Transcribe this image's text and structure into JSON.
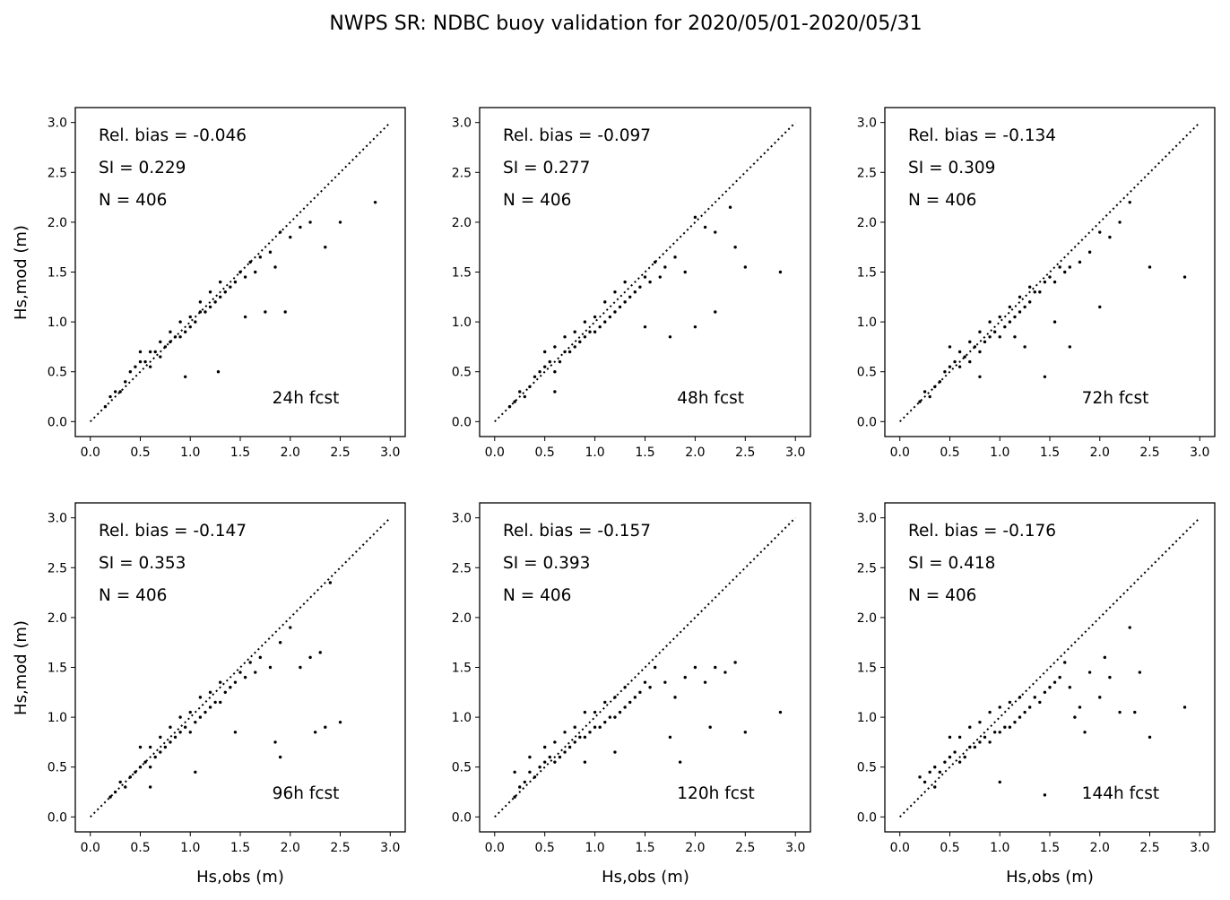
{
  "title": "NWPS SR: NDBC buoy validation for 2020/05/01-2020/05/31",
  "xlabel": "Hs,obs (m)",
  "ylabel": "Hs,mod (m)",
  "chart_data": [
    {
      "type": "scatter",
      "panel_label": "24h fcst",
      "rel_bias_text": "Rel. bias = -0.046",
      "si_text": "SI =  0.229",
      "n_text": "N = 406",
      "rel_bias": -0.046,
      "si": 0.229,
      "n": 406,
      "xlim": [
        -0.15,
        3.15
      ],
      "ylim": [
        -0.15,
        3.15
      ],
      "xticks": [
        "0.0",
        "0.5",
        "1.0",
        "1.5",
        "2.0",
        "2.5",
        "3.0"
      ],
      "yticks": [
        "0.0",
        "0.5",
        "1.0",
        "1.5",
        "2.0",
        "2.5",
        "3.0"
      ],
      "reference_line": "1:1 dotted",
      "points_x": [
        0.15,
        0.2,
        0.25,
        0.3,
        0.35,
        0.4,
        0.45,
        0.5,
        0.5,
        0.55,
        0.6,
        0.6,
        0.65,
        0.7,
        0.7,
        0.75,
        0.8,
        0.8,
        0.85,
        0.9,
        0.9,
        0.95,
        1.0,
        1.0,
        1.05,
        1.1,
        1.1,
        1.15,
        1.2,
        1.2,
        1.25,
        1.3,
        1.3,
        1.35,
        1.4,
        1.45,
        1.5,
        1.55,
        1.6,
        1.65,
        1.7,
        1.8,
        1.85,
        1.9,
        2.0,
        2.1,
        2.2,
        2.35,
        2.5,
        2.85,
        1.28,
        0.95,
        1.95,
        1.75,
        1.55
      ],
      "points_y": [
        0.15,
        0.25,
        0.3,
        0.3,
        0.4,
        0.5,
        0.55,
        0.6,
        0.7,
        0.6,
        0.55,
        0.7,
        0.7,
        0.65,
        0.8,
        0.75,
        0.8,
        0.9,
        0.85,
        0.85,
        1.0,
        0.9,
        0.95,
        1.05,
        1.0,
        1.1,
        1.2,
        1.1,
        1.15,
        1.3,
        1.2,
        1.25,
        1.4,
        1.3,
        1.35,
        1.4,
        1.5,
        1.45,
        1.6,
        1.5,
        1.65,
        1.7,
        1.55,
        1.9,
        1.85,
        1.95,
        2.0,
        1.75,
        2.0,
        2.2,
        0.5,
        0.45,
        1.1,
        1.1,
        1.05
      ]
    },
    {
      "type": "scatter",
      "panel_label": "48h fcst",
      "rel_bias_text": "Rel. bias = -0.097",
      "si_text": "SI =  0.277",
      "n_text": "N = 406",
      "rel_bias": -0.097,
      "si": 0.277,
      "n": 406,
      "xlim": [
        -0.15,
        3.15
      ],
      "ylim": [
        -0.15,
        3.15
      ],
      "xticks": [
        "0.0",
        "0.5",
        "1.0",
        "1.5",
        "2.0",
        "2.5",
        "3.0"
      ],
      "yticks": [
        "0.0",
        "0.5",
        "1.0",
        "1.5",
        "2.0",
        "2.5",
        "3.0"
      ],
      "reference_line": "1:1 dotted",
      "points_x": [
        0.15,
        0.2,
        0.25,
        0.3,
        0.35,
        0.4,
        0.45,
        0.5,
        0.5,
        0.55,
        0.6,
        0.6,
        0.65,
        0.7,
        0.7,
        0.75,
        0.8,
        0.8,
        0.85,
        0.9,
        0.9,
        0.95,
        1.0,
        1.0,
        1.05,
        1.1,
        1.1,
        1.15,
        1.2,
        1.2,
        1.25,
        1.3,
        1.3,
        1.35,
        1.4,
        1.45,
        1.5,
        1.55,
        1.6,
        1.65,
        1.7,
        1.8,
        1.9,
        2.0,
        2.1,
        2.2,
        2.35,
        2.4,
        2.5,
        2.85,
        1.5,
        1.75,
        2.0,
        2.2,
        0.6
      ],
      "points_y": [
        0.15,
        0.2,
        0.3,
        0.25,
        0.35,
        0.45,
        0.5,
        0.55,
        0.7,
        0.6,
        0.5,
        0.75,
        0.6,
        0.7,
        0.85,
        0.7,
        0.75,
        0.9,
        0.8,
        0.85,
        1.0,
        0.9,
        0.9,
        1.05,
        0.95,
        1.0,
        1.2,
        1.05,
        1.1,
        1.3,
        1.15,
        1.2,
        1.4,
        1.25,
        1.3,
        1.35,
        1.45,
        1.4,
        1.6,
        1.45,
        1.55,
        1.65,
        1.5,
        2.05,
        1.95,
        1.9,
        2.15,
        1.75,
        1.55,
        1.5,
        0.95,
        0.85,
        0.95,
        1.1,
        0.3
      ]
    },
    {
      "type": "scatter",
      "panel_label": "72h fcst",
      "rel_bias_text": "Rel. bias = -0.134",
      "si_text": "SI =  0.309",
      "n_text": "N = 406",
      "rel_bias": -0.134,
      "si": 0.309,
      "n": 406,
      "xlim": [
        -0.15,
        3.15
      ],
      "ylim": [
        -0.15,
        3.15
      ],
      "xticks": [
        "0.0",
        "0.5",
        "1.0",
        "1.5",
        "2.0",
        "2.5",
        "3.0"
      ],
      "yticks": [
        "0.0",
        "0.5",
        "1.0",
        "1.5",
        "2.0",
        "2.5",
        "3.0"
      ],
      "reference_line": "1:1 dotted",
      "points_x": [
        0.2,
        0.25,
        0.3,
        0.35,
        0.4,
        0.45,
        0.5,
        0.5,
        0.55,
        0.6,
        0.6,
        0.65,
        0.7,
        0.7,
        0.75,
        0.8,
        0.8,
        0.85,
        0.9,
        0.9,
        0.95,
        1.0,
        1.0,
        1.05,
        1.1,
        1.1,
        1.15,
        1.2,
        1.2,
        1.25,
        1.3,
        1.3,
        1.35,
        1.4,
        1.45,
        1.5,
        1.55,
        1.6,
        1.65,
        1.7,
        1.8,
        1.9,
        2.0,
        2.1,
        2.2,
        2.3,
        2.5,
        2.85,
        1.45,
        1.7,
        2.0,
        1.55,
        0.8,
        1.15,
        1.25
      ],
      "points_y": [
        0.2,
        0.3,
        0.25,
        0.35,
        0.4,
        0.5,
        0.55,
        0.75,
        0.6,
        0.55,
        0.7,
        0.65,
        0.6,
        0.8,
        0.75,
        0.7,
        0.9,
        0.8,
        0.85,
        1.0,
        0.9,
        0.85,
        1.05,
        0.95,
        1.0,
        1.15,
        1.05,
        1.1,
        1.25,
        1.15,
        1.2,
        1.35,
        1.3,
        1.3,
        1.4,
        1.45,
        1.4,
        1.55,
        1.5,
        1.55,
        1.6,
        1.7,
        1.9,
        1.85,
        2.0,
        2.2,
        1.55,
        1.45,
        0.45,
        0.75,
        1.15,
        1.0,
        0.45,
        0.85,
        0.75
      ]
    },
    {
      "type": "scatter",
      "panel_label": "96h fcst",
      "rel_bias_text": "Rel. bias = -0.147",
      "si_text": "SI =  0.353",
      "n_text": "N = 406",
      "rel_bias": -0.147,
      "si": 0.353,
      "n": 406,
      "xlim": [
        -0.15,
        3.15
      ],
      "ylim": [
        -0.15,
        3.15
      ],
      "xticks": [
        "0.0",
        "0.5",
        "1.0",
        "1.5",
        "2.0",
        "2.5",
        "3.0"
      ],
      "yticks": [
        "0.0",
        "0.5",
        "1.0",
        "1.5",
        "2.0",
        "2.5",
        "3.0"
      ],
      "reference_line": "1:1 dotted",
      "points_x": [
        0.2,
        0.25,
        0.3,
        0.35,
        0.4,
        0.45,
        0.5,
        0.5,
        0.55,
        0.6,
        0.6,
        0.65,
        0.7,
        0.7,
        0.75,
        0.8,
        0.8,
        0.85,
        0.9,
        0.9,
        0.95,
        1.0,
        1.0,
        1.05,
        1.1,
        1.1,
        1.15,
        1.2,
        1.2,
        1.25,
        1.3,
        1.3,
        1.35,
        1.4,
        1.45,
        1.5,
        1.55,
        1.6,
        1.65,
        1.7,
        1.8,
        1.9,
        2.0,
        2.1,
        2.2,
        2.3,
        2.4,
        2.5,
        1.85,
        1.9,
        2.25,
        2.35,
        1.45,
        1.05,
        0.6
      ],
      "points_y": [
        0.2,
        0.25,
        0.35,
        0.3,
        0.4,
        0.45,
        0.5,
        0.7,
        0.55,
        0.5,
        0.7,
        0.6,
        0.65,
        0.8,
        0.7,
        0.75,
        0.9,
        0.8,
        0.85,
        1.0,
        0.9,
        0.85,
        1.05,
        0.95,
        1.0,
        1.2,
        1.05,
        1.1,
        1.25,
        1.15,
        1.15,
        1.35,
        1.25,
        1.3,
        1.35,
        1.45,
        1.4,
        1.55,
        1.45,
        1.6,
        1.5,
        1.75,
        1.9,
        1.5,
        1.6,
        1.65,
        2.35,
        0.95,
        0.75,
        0.6,
        0.85,
        0.9,
        0.85,
        0.45,
        0.3
      ]
    },
    {
      "type": "scatter",
      "panel_label": "120h fcst",
      "rel_bias_text": "Rel. bias = -0.157",
      "si_text": "SI =  0.393",
      "n_text": "N = 406",
      "rel_bias": -0.157,
      "si": 0.393,
      "n": 406,
      "xlim": [
        -0.15,
        3.15
      ],
      "ylim": [
        -0.15,
        3.15
      ],
      "xticks": [
        "0.0",
        "0.5",
        "1.0",
        "1.5",
        "2.0",
        "2.5",
        "3.0"
      ],
      "yticks": [
        "0.0",
        "0.5",
        "1.0",
        "1.5",
        "2.0",
        "2.5",
        "3.0"
      ],
      "reference_line": "1:1 dotted",
      "points_x": [
        0.2,
        0.25,
        0.3,
        0.35,
        0.4,
        0.45,
        0.5,
        0.5,
        0.55,
        0.6,
        0.6,
        0.65,
        0.7,
        0.7,
        0.75,
        0.8,
        0.8,
        0.85,
        0.9,
        0.9,
        0.95,
        1.0,
        1.0,
        1.05,
        1.1,
        1.1,
        1.15,
        1.2,
        1.2,
        1.25,
        1.3,
        1.3,
        1.35,
        1.4,
        1.45,
        1.5,
        1.55,
        1.6,
        1.7,
        1.8,
        1.9,
        2.0,
        2.1,
        2.2,
        2.3,
        2.4,
        2.5,
        2.85,
        1.75,
        1.85,
        2.15,
        1.2,
        0.9,
        0.2,
        0.35
      ],
      "points_y": [
        0.2,
        0.3,
        0.35,
        0.45,
        0.4,
        0.5,
        0.55,
        0.7,
        0.6,
        0.55,
        0.75,
        0.6,
        0.65,
        0.85,
        0.7,
        0.75,
        0.9,
        0.8,
        0.8,
        1.05,
        0.85,
        0.9,
        1.05,
        0.9,
        0.95,
        1.15,
        1.0,
        1.0,
        1.2,
        1.05,
        1.1,
        1.3,
        1.15,
        1.2,
        1.25,
        1.35,
        1.3,
        1.5,
        1.35,
        1.2,
        1.4,
        1.5,
        1.35,
        1.5,
        1.45,
        1.55,
        0.85,
        1.05,
        0.8,
        0.55,
        0.9,
        0.65,
        0.55,
        0.45,
        0.6
      ]
    },
    {
      "type": "scatter",
      "panel_label": "144h fcst",
      "rel_bias_text": "Rel. bias = -0.176",
      "si_text": "SI =  0.418",
      "n_text": "N = 406",
      "rel_bias": -0.176,
      "si": 0.418,
      "n": 406,
      "xlim": [
        -0.15,
        3.15
      ],
      "ylim": [
        -0.15,
        3.15
      ],
      "xticks": [
        "0.0",
        "0.5",
        "1.0",
        "1.5",
        "2.0",
        "2.5",
        "3.0"
      ],
      "yticks": [
        "0.0",
        "0.5",
        "1.0",
        "1.5",
        "2.0",
        "2.5",
        "3.0"
      ],
      "reference_line": "1:1 dotted",
      "points_x": [
        0.2,
        0.25,
        0.3,
        0.35,
        0.4,
        0.45,
        0.5,
        0.5,
        0.55,
        0.6,
        0.6,
        0.65,
        0.7,
        0.7,
        0.75,
        0.8,
        0.8,
        0.85,
        0.9,
        0.9,
        0.95,
        1.0,
        1.0,
        1.05,
        1.1,
        1.1,
        1.15,
        1.2,
        1.2,
        1.25,
        1.3,
        1.35,
        1.4,
        1.45,
        1.5,
        1.55,
        1.6,
        1.7,
        1.8,
        1.9,
        2.0,
        2.1,
        2.2,
        2.3,
        2.4,
        2.5,
        2.85,
        1.65,
        1.75,
        1.85,
        2.05,
        2.35,
        1.45,
        0.35,
        1.0
      ],
      "points_y": [
        0.4,
        0.35,
        0.45,
        0.5,
        0.45,
        0.55,
        0.6,
        0.8,
        0.65,
        0.55,
        0.8,
        0.6,
        0.7,
        0.9,
        0.7,
        0.75,
        0.95,
        0.8,
        0.75,
        1.05,
        0.85,
        0.85,
        1.1,
        0.9,
        0.9,
        1.15,
        0.95,
        1.0,
        1.2,
        1.05,
        1.1,
        1.2,
        1.15,
        1.25,
        1.3,
        1.35,
        1.4,
        1.3,
        1.1,
        1.45,
        1.2,
        1.4,
        1.05,
        1.9,
        1.45,
        0.8,
        1.1,
        1.55,
        1.0,
        0.85,
        1.6,
        1.05,
        0.22,
        0.3,
        0.35
      ]
    }
  ]
}
